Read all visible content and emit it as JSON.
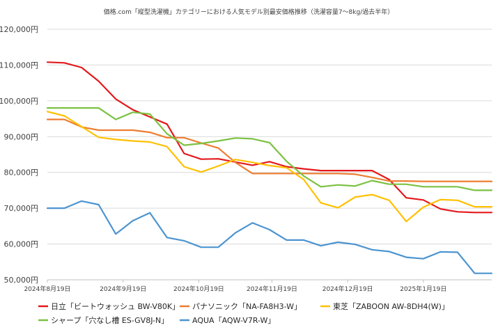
{
  "chart_data": {
    "type": "line",
    "title": "価格.com「縦型洗濯機」カテゴリーにおける人気モデル別最安価格推移（洗濯容量7～8kg/過去半年）",
    "xlabel": "",
    "ylabel": "",
    "ylim": [
      50000,
      120000
    ],
    "yticks": [
      50000,
      60000,
      70000,
      80000,
      90000,
      100000,
      110000,
      120000
    ],
    "ytick_labels": [
      "50,000円",
      "60,000円",
      "70,000円",
      "80,000円",
      "90,000円",
      "100,000円",
      "110,000円",
      "120,000円"
    ],
    "x_count": 27,
    "xticks": [
      {
        "index": 0,
        "label": "2024年8月19日"
      },
      {
        "index": 4.43,
        "label": "2024年9月19日"
      },
      {
        "index": 8.86,
        "label": "2024年10月19日"
      },
      {
        "index": 13.14,
        "label": "2024年11月19日"
      },
      {
        "index": 17.57,
        "label": "2024年12月19日"
      },
      {
        "index": 22,
        "label": "2025年1月19日"
      }
    ],
    "grid": true,
    "legend_position": "bottom",
    "series": [
      {
        "name": "日立「ビートウォッシュ BW-V80K」",
        "color": "#e3191c",
        "values": [
          110800,
          110600,
          109300,
          105500,
          100500,
          97500,
          95500,
          93500,
          85300,
          83700,
          83800,
          82900,
          82000,
          83000,
          81600,
          81000,
          80500,
          80500,
          80500,
          80500,
          78000,
          72900,
          72300,
          69800,
          69000,
          68800,
          68800
        ]
      },
      {
        "name": "パナソニック「NA-FA8H3-W」",
        "color": "#ed7d31",
        "values": [
          94800,
          94800,
          92700,
          91800,
          91800,
          91800,
          91200,
          89700,
          89700,
          88200,
          86800,
          82800,
          79700,
          79700,
          79700,
          79700,
          79700,
          79700,
          79500,
          78600,
          77600,
          77600,
          77500,
          77500,
          77500,
          77500,
          77500
        ]
      },
      {
        "name": "東芝「ZABOON AW-8DH4(W)」",
        "color": "#ffc000",
        "values": [
          97000,
          95800,
          92800,
          89800,
          89200,
          88800,
          88500,
          87200,
          81600,
          80100,
          81800,
          83600,
          82800,
          81900,
          81300,
          78000,
          71500,
          70100,
          73100,
          73800,
          72200,
          66300,
          70300,
          72400,
          72200,
          70400,
          70400
        ]
      },
      {
        "name": "シャープ「穴なし槽 ES-GV8J-N」",
        "color": "#7cc142",
        "values": [
          98000,
          98000,
          98000,
          98000,
          94800,
          96800,
          96300,
          90800,
          87600,
          88100,
          88800,
          89600,
          89400,
          88300,
          83100,
          79000,
          76000,
          76500,
          76200,
          77700,
          76700,
          76700,
          76000,
          76000,
          76000,
          75000,
          75000
        ]
      },
      {
        "name": "AQUA「AQW-V7R-W」",
        "color": "#4c94d0",
        "values": [
          70000,
          70000,
          72000,
          71000,
          62800,
          66500,
          68700,
          61800,
          60900,
          59100,
          59100,
          63100,
          65900,
          64000,
          61100,
          61100,
          59500,
          60500,
          59900,
          58400,
          57900,
          56300,
          55900,
          57800,
          57700,
          51800,
          51800
        ]
      }
    ]
  }
}
